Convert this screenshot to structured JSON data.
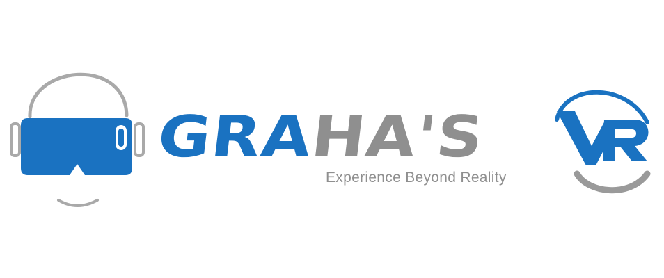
{
  "logo": {
    "brand_part1": "GRA",
    "brand_part2": "HA'S",
    "tagline": "Experience Beyond Reality",
    "badge": "VR"
  },
  "colors": {
    "blue": "#1a72c1",
    "gray": "#8f8f8f",
    "background": "#ffffff"
  }
}
